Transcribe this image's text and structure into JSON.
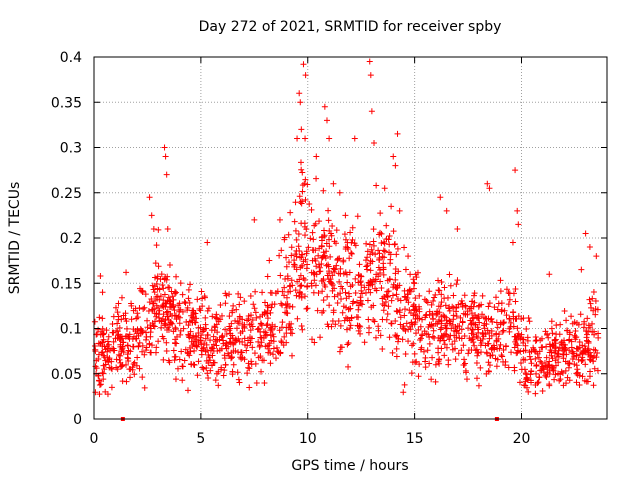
{
  "chart_data": {
    "type": "scatter",
    "title": "Day 272 of 2021, SRMTID for receiver spby",
    "xlabel": "GPS time / hours",
    "ylabel": "SRMTID / TECUs",
    "xlim": [
      0,
      24
    ],
    "ylim": [
      0,
      0.4
    ],
    "xticks": [
      0,
      5,
      10,
      15,
      20
    ],
    "yticks": [
      0,
      0.05,
      0.1,
      0.15,
      0.2,
      0.25,
      0.3,
      0.35,
      0.4
    ],
    "xtick_labels": [
      "0",
      "5",
      "10",
      "15",
      "20"
    ],
    "ytick_labels": [
      "0",
      "0.05",
      "0.1",
      "0.15",
      "0.2",
      "0.25",
      "0.3",
      "0.35",
      "0.4"
    ],
    "grid": true,
    "marker": "+",
    "colors": {
      "series": "#ff0000",
      "axis": "#000000",
      "grid": "#a0a0a0"
    },
    "zero_markers_x": [
      1.35,
      18.85
    ],
    "envelope": [
      [
        0,
        0.06,
        0.035
      ],
      [
        1,
        0.085,
        0.03
      ],
      [
        2,
        0.09,
        0.035
      ],
      [
        2.6,
        0.11,
        0.04
      ],
      [
        3,
        0.13,
        0.04
      ],
      [
        4,
        0.1,
        0.035
      ],
      [
        5,
        0.095,
        0.03
      ],
      [
        6,
        0.085,
        0.03
      ],
      [
        7,
        0.09,
        0.03
      ],
      [
        8,
        0.1,
        0.035
      ],
      [
        9,
        0.13,
        0.045
      ],
      [
        9.7,
        0.2,
        0.06
      ],
      [
        10.5,
        0.17,
        0.05
      ],
      [
        11.5,
        0.15,
        0.045
      ],
      [
        12.5,
        0.14,
        0.045
      ],
      [
        13.5,
        0.16,
        0.05
      ],
      [
        14.5,
        0.12,
        0.04
      ],
      [
        15.5,
        0.1,
        0.035
      ],
      [
        16.5,
        0.105,
        0.035
      ],
      [
        17.5,
        0.1,
        0.035
      ],
      [
        18.5,
        0.09,
        0.03
      ],
      [
        19.5,
        0.1,
        0.035
      ],
      [
        20.3,
        0.06,
        0.025
      ],
      [
        21.5,
        0.07,
        0.025
      ],
      [
        22.5,
        0.08,
        0.03
      ],
      [
        23.5,
        0.09,
        0.035
      ]
    ],
    "highlight_points": [
      [
        0.3,
        0.158
      ],
      [
        0.4,
        0.14
      ],
      [
        1.5,
        0.162
      ],
      [
        2.6,
        0.245
      ],
      [
        2.7,
        0.225
      ],
      [
        2.8,
        0.21
      ],
      [
        3.3,
        0.3
      ],
      [
        3.35,
        0.29
      ],
      [
        3.4,
        0.27
      ],
      [
        3.45,
        0.21
      ],
      [
        5.3,
        0.195
      ],
      [
        7.5,
        0.22
      ],
      [
        8.7,
        0.22
      ],
      [
        9.5,
        0.31
      ],
      [
        9.6,
        0.36
      ],
      [
        9.65,
        0.35
      ],
      [
        9.7,
        0.32
      ],
      [
        9.8,
        0.392
      ],
      [
        9.9,
        0.38
      ],
      [
        10.4,
        0.29
      ],
      [
        10.8,
        0.345
      ],
      [
        10.9,
        0.33
      ],
      [
        11.0,
        0.31
      ],
      [
        11.2,
        0.26
      ],
      [
        11.5,
        0.25
      ],
      [
        12.2,
        0.31
      ],
      [
        12.9,
        0.395
      ],
      [
        12.95,
        0.38
      ],
      [
        13.0,
        0.34
      ],
      [
        13.1,
        0.305
      ],
      [
        13.2,
        0.258
      ],
      [
        13.6,
        0.255
      ],
      [
        13.9,
        0.235
      ],
      [
        14.0,
        0.29
      ],
      [
        14.1,
        0.28
      ],
      [
        14.2,
        0.315
      ],
      [
        14.3,
        0.23
      ],
      [
        16.2,
        0.245
      ],
      [
        16.5,
        0.23
      ],
      [
        17.0,
        0.21
      ],
      [
        18.4,
        0.26
      ],
      [
        18.5,
        0.255
      ],
      [
        19.7,
        0.275
      ],
      [
        19.8,
        0.23
      ],
      [
        19.85,
        0.215
      ],
      [
        19.6,
        0.195
      ],
      [
        21.3,
        0.16
      ],
      [
        22.8,
        0.165
      ],
      [
        23.0,
        0.205
      ],
      [
        23.2,
        0.19
      ],
      [
        23.5,
        0.18
      ]
    ]
  }
}
